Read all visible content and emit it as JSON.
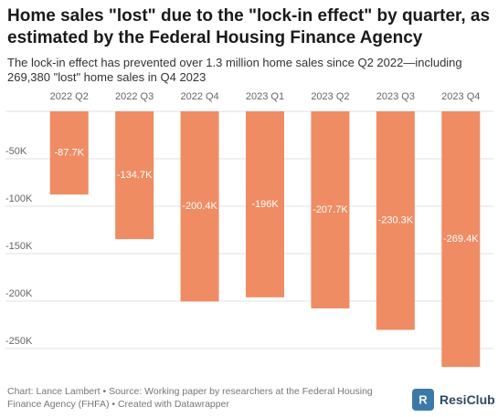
{
  "chart_data": {
    "type": "bar",
    "title": "Home sales \"lost\" due to the \"lock-in effect\" by quarter, as estimated by the Federal Housing Finance Agency",
    "subtitle": "The lock-in effect has prevented over 1.3 million home sales since Q2 2022—including 269,380 \"lost\" home sales in Q4 2023",
    "source": "Chart: Lance Lambert • Source: Working paper by researchers at the Federal Housing Finance Agency (FHFA) • Created with Datawrapper",
    "logo_text": "ResiClub",
    "categories": [
      "2022 Q2",
      "2022 Q3",
      "2022 Q4",
      "2023 Q1",
      "2023 Q2",
      "2023 Q3",
      "2023 Q4"
    ],
    "values": [
      -87700,
      -134700,
      -200400,
      -196000,
      -207700,
      -230300,
      -269400
    ],
    "value_labels": [
      "-87.7K",
      "-134.7K",
      "-200.4K",
      "-196K",
      "-207.7K",
      "-230.3K",
      "-269.4K"
    ],
    "color": "#ef8c64",
    "ylim": [
      0,
      -275000
    ],
    "yticks": [
      {
        "value": -50000,
        "label": "-50K"
      },
      {
        "value": -100000,
        "label": "-100K"
      },
      {
        "value": -150000,
        "label": "-150K"
      },
      {
        "value": -200000,
        "label": "-200K"
      },
      {
        "value": -250000,
        "label": "-250K"
      }
    ],
    "grid": true
  }
}
